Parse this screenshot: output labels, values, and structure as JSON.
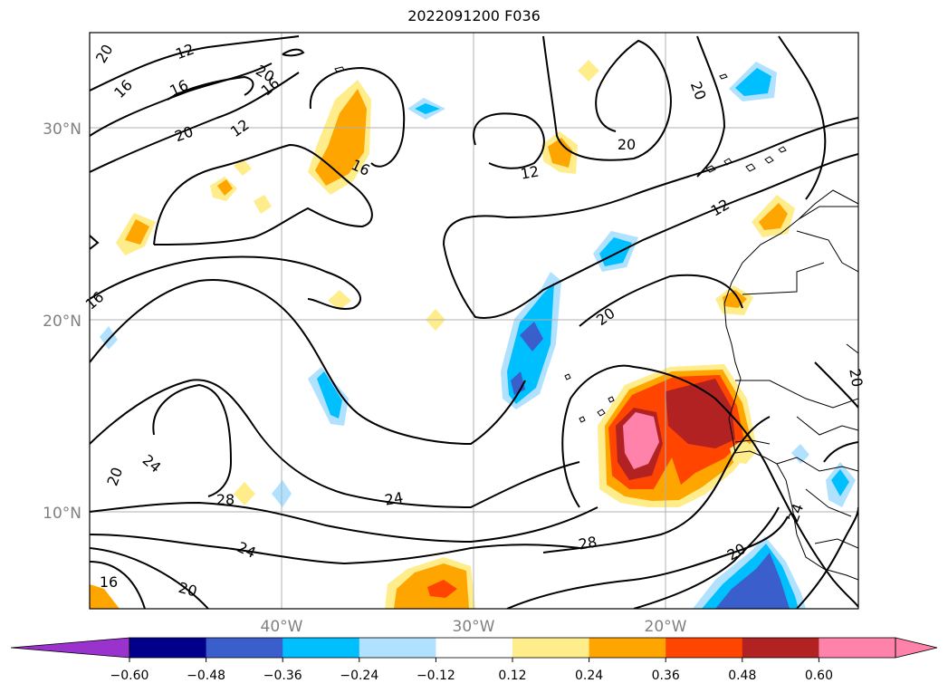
{
  "title": "2022091200 F036",
  "map": {
    "lat_labels": [
      "30°N",
      "20°N",
      "10°N"
    ],
    "lon_labels": [
      "40°W",
      "30°W",
      "20°W"
    ],
    "contour_labels": [
      "20",
      "12",
      "16",
      "20",
      "16",
      "20",
      "12",
      "16",
      "20",
      "12",
      "20",
      "12",
      "16",
      "16",
      "20",
      "24",
      "20",
      "28",
      "24",
      "28",
      "24",
      "20",
      "16",
      "20",
      "24",
      "20",
      "20",
      "24",
      "28",
      "24",
      "20"
    ]
  },
  "colorbar": {
    "ticks": [
      "−0.60",
      "−0.48",
      "−0.36",
      "−0.24",
      "−0.12",
      "0.12",
      "0.24",
      "0.36",
      "0.48",
      "0.60"
    ],
    "colors": [
      "#9a32cd",
      "#00008b",
      "#3a5fcd",
      "#00bfff",
      "#b0e2ff",
      "#ffffff",
      "#ffec8b",
      "#ffa500",
      "#ff4500",
      "#b22222",
      "#ff82ab",
      "#ff82ab"
    ]
  }
}
